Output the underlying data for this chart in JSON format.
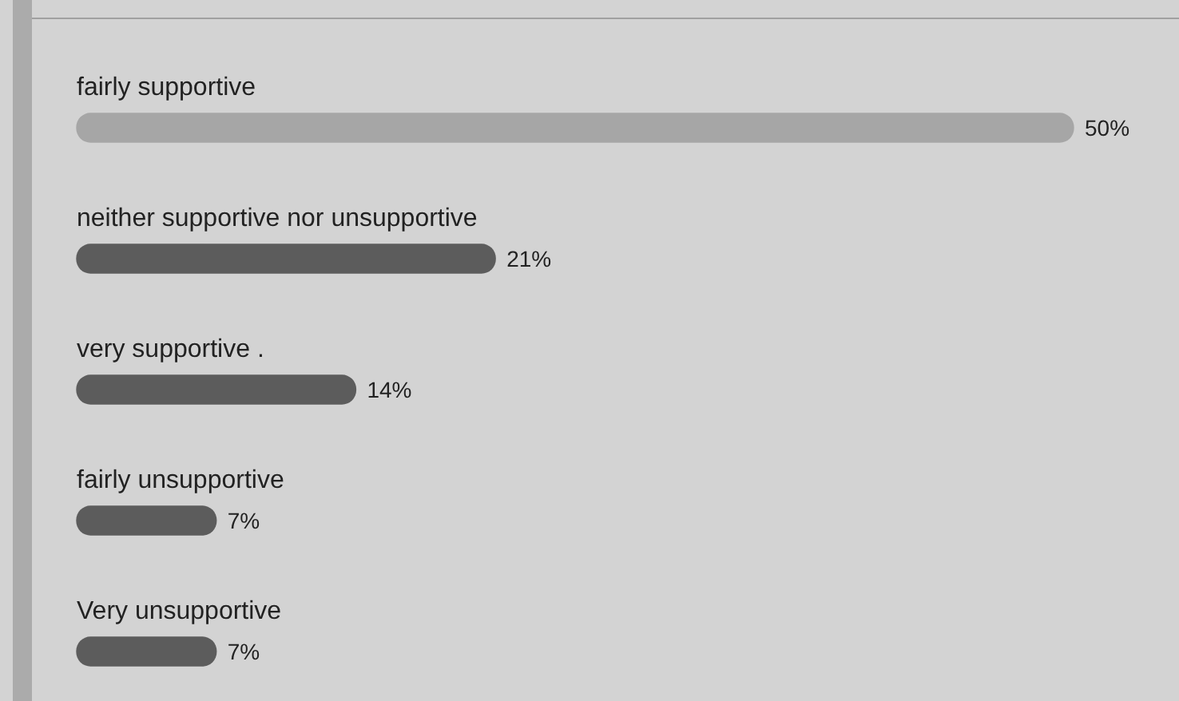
{
  "chart_data": {
    "type": "bar",
    "orientation": "horizontal",
    "categories": [
      "fairly supportive",
      "neither supportive nor unsupportive",
      "very supportive .",
      "fairly unsupportive",
      "Very unsupportive"
    ],
    "values": [
      50,
      21,
      14,
      7,
      7
    ],
    "colors": [
      "#a6a6a6",
      "#5c5c5c",
      "#5c5c5c",
      "#5c5c5c",
      "#5c5c5c"
    ],
    "value_labels": [
      "50%",
      "21%",
      "14%",
      "7%",
      "7%"
    ],
    "legend": false
  }
}
